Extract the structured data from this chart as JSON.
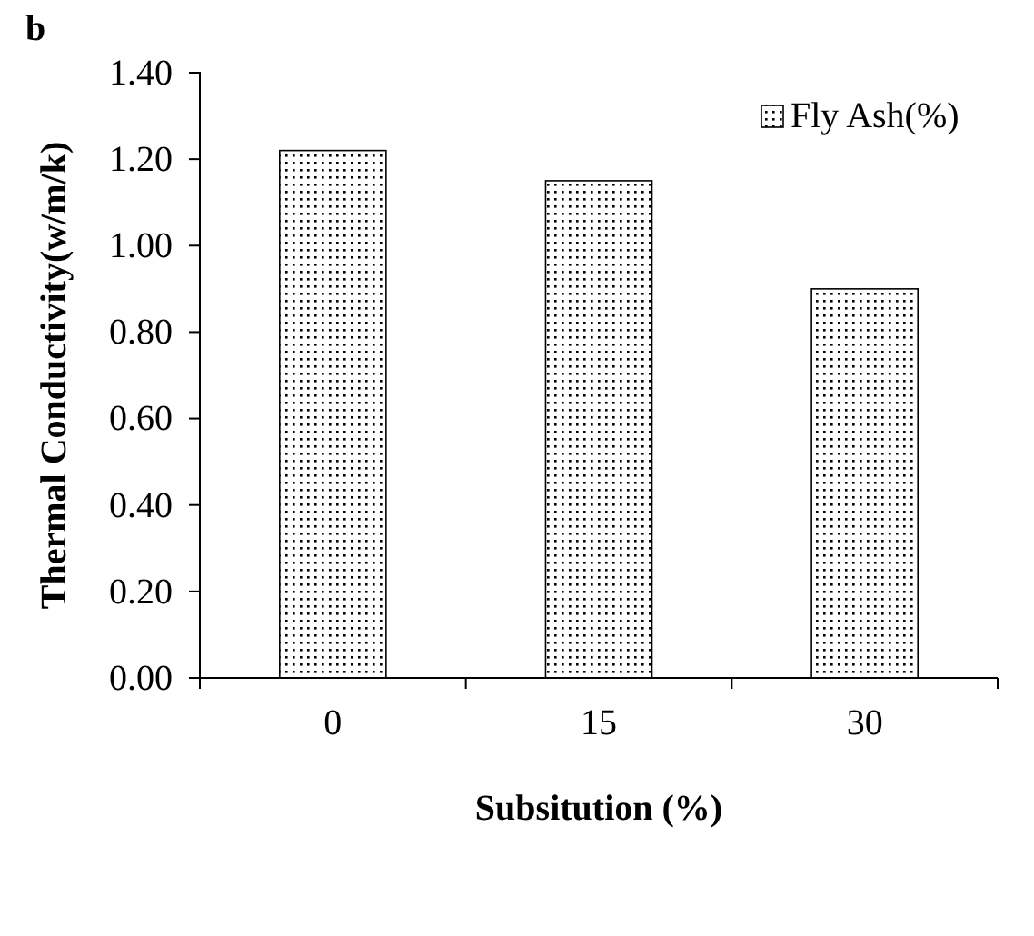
{
  "chart_data": {
    "type": "bar",
    "annotations": [
      "b"
    ],
    "xlabel": "Subsitution (%)",
    "ylabel": "Thermal Conductivity(w/m/k)",
    "categories": [
      "0",
      "15",
      "30"
    ],
    "series": [
      {
        "name": "Fly Ash(%)",
        "color": "#000000",
        "values": [
          1.22,
          1.15,
          0.9
        ]
      }
    ],
    "ylim": [
      0,
      1.4
    ],
    "yticks": [
      {
        "value": 0,
        "label": "0.00"
      },
      {
        "value": 0.2,
        "label": "0.20"
      },
      {
        "value": 0.4,
        "label": "0.40"
      },
      {
        "value": 0.6,
        "label": "0.60"
      },
      {
        "value": 0.8,
        "label": "0.80"
      },
      {
        "value": 1.0,
        "label": "1.00"
      },
      {
        "value": 1.2,
        "label": "1.20"
      },
      {
        "value": 1.4,
        "label": "1.40"
      }
    ],
    "grid": false,
    "legend": "top right"
  }
}
